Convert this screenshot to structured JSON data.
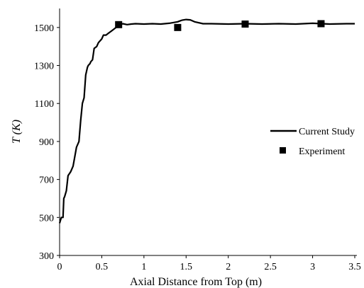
{
  "chart_data": {
    "type": "line",
    "xlabel": "Axial Distance from Top (m)",
    "ylabel": "T (K)",
    "xlim": [
      0,
      3.5
    ],
    "ylim": [
      300,
      1600
    ],
    "x_ticks": [
      "0",
      "0.5",
      "1",
      "1.5",
      "2",
      "2.5",
      "3",
      "3.5"
    ],
    "y_ticks": [
      "300",
      "500",
      "700",
      "900",
      "1100",
      "1300",
      "1500"
    ],
    "grid": false,
    "legend_position": "right",
    "series": [
      {
        "name": "Current Study",
        "kind": "line",
        "color": "#000000",
        "x": [
          0.0,
          0.02,
          0.04,
          0.05,
          0.06,
          0.08,
          0.1,
          0.13,
          0.16,
          0.18,
          0.2,
          0.23,
          0.25,
          0.27,
          0.29,
          0.31,
          0.33,
          0.34,
          0.36,
          0.37,
          0.39,
          0.41,
          0.44,
          0.46,
          0.48,
          0.5,
          0.52,
          0.55,
          0.58,
          0.61,
          0.64,
          0.67,
          0.7,
          0.72,
          0.75,
          0.8,
          0.85,
          0.9,
          1.0,
          1.1,
          1.2,
          1.3,
          1.4,
          1.45,
          1.5,
          1.55,
          1.6,
          1.7,
          1.8,
          2.0,
          2.2,
          2.4,
          2.6,
          2.8,
          3.0,
          3.2,
          3.4,
          3.5
        ],
        "y": [
          470,
          500,
          500,
          600,
          610,
          640,
          720,
          740,
          770,
          820,
          870,
          900,
          1010,
          1100,
          1130,
          1250,
          1290,
          1300,
          1310,
          1320,
          1330,
          1390,
          1400,
          1420,
          1430,
          1440,
          1460,
          1460,
          1470,
          1480,
          1490,
          1500,
          1505,
          1515,
          1520,
          1515,
          1518,
          1520,
          1518,
          1520,
          1518,
          1522,
          1530,
          1538,
          1542,
          1540,
          1530,
          1520,
          1520,
          1518,
          1520,
          1518,
          1520,
          1518,
          1522,
          1518,
          1520,
          1520
        ]
      },
      {
        "name": "Experiment",
        "kind": "marker",
        "color": "#000000",
        "x": [
          0.7,
          1.4,
          2.2,
          3.1
        ],
        "y": [
          1515,
          1500,
          1518,
          1520
        ]
      }
    ]
  }
}
